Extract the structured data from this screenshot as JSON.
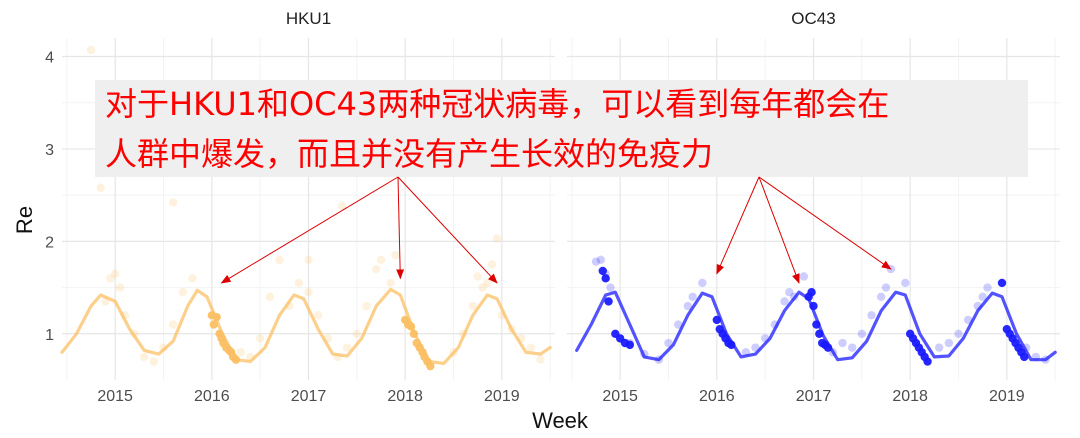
{
  "chart_data": {
    "type": "scatter",
    "xlabel": "Week",
    "ylabel": "Re",
    "ylim": [
      0.5,
      4.2
    ],
    "yticks": [
      1,
      2,
      3,
      4
    ],
    "grid": true,
    "legend": "none",
    "x_tick_labels": [
      "2015",
      "2016",
      "2017",
      "2018",
      "2019"
    ],
    "panels": [
      {
        "title": "HKU1",
        "color": "#fbbf63",
        "xlim": [
          2014.45,
          2019.55
        ],
        "curve": {
          "x": [
            2014.45,
            2014.6,
            2014.75,
            2014.85,
            2015.0,
            2015.15,
            2015.3,
            2015.45,
            2015.6,
            2015.75,
            2015.85,
            2015.95,
            2016.1,
            2016.25,
            2016.4,
            2016.55,
            2016.7,
            2016.85,
            2016.95,
            2017.1,
            2017.25,
            2017.4,
            2017.55,
            2017.7,
            2017.85,
            2017.95,
            2018.1,
            2018.25,
            2018.4,
            2018.55,
            2018.7,
            2018.85,
            2018.95,
            2019.1,
            2019.25,
            2019.4,
            2019.5
          ],
          "y": [
            0.8,
            1.0,
            1.3,
            1.42,
            1.35,
            1.05,
            0.82,
            0.78,
            0.92,
            1.3,
            1.47,
            1.4,
            1.02,
            0.72,
            0.7,
            0.85,
            1.2,
            1.42,
            1.38,
            1.05,
            0.78,
            0.76,
            0.95,
            1.3,
            1.48,
            1.42,
            1.0,
            0.7,
            0.68,
            0.85,
            1.2,
            1.42,
            1.38,
            1.05,
            0.8,
            0.78,
            0.85
          ]
        },
        "faint_points": [
          [
            2014.9,
            1.35
          ],
          [
            2014.95,
            1.6
          ],
          [
            2015.0,
            1.65
          ],
          [
            2015.05,
            1.5
          ],
          [
            2015.1,
            1.2
          ],
          [
            2015.2,
            1.0
          ],
          [
            2015.3,
            0.75
          ],
          [
            2015.4,
            0.7
          ],
          [
            2015.5,
            0.85
          ],
          [
            2015.6,
            1.1
          ],
          [
            2015.7,
            1.45
          ],
          [
            2015.8,
            1.6
          ],
          [
            2015.6,
            2.42
          ],
          [
            2015.3,
            2.95
          ],
          [
            2014.85,
            2.58
          ],
          [
            2014.75,
            4.07
          ],
          [
            2016.3,
            0.8
          ],
          [
            2016.4,
            0.75
          ],
          [
            2016.5,
            0.95
          ],
          [
            2016.6,
            1.4
          ],
          [
            2016.7,
            1.8
          ],
          [
            2016.8,
            1.3
          ],
          [
            2016.9,
            1.55
          ],
          [
            2017.0,
            1.45
          ],
          [
            2017.1,
            1.2
          ],
          [
            2017.2,
            0.95
          ],
          [
            2017.3,
            0.75
          ],
          [
            2017.4,
            0.85
          ],
          [
            2017.5,
            1.0
          ],
          [
            2017.6,
            1.3
          ],
          [
            2017.7,
            1.7
          ],
          [
            2017.75,
            1.8
          ],
          [
            2017.35,
            2.38
          ],
          [
            2017.0,
            1.8
          ],
          [
            2017.85,
            1.55
          ],
          [
            2017.9,
            1.85
          ],
          [
            2018.5,
            0.8
          ],
          [
            2018.6,
            1.0
          ],
          [
            2018.7,
            1.3
          ],
          [
            2018.8,
            1.5
          ],
          [
            2018.85,
            1.55
          ],
          [
            2018.75,
            1.62
          ],
          [
            2018.9,
            1.75
          ],
          [
            2018.95,
            2.03
          ],
          [
            2019.0,
            1.2
          ],
          [
            2019.1,
            1.05
          ],
          [
            2019.2,
            0.95
          ],
          [
            2019.3,
            0.85
          ],
          [
            2019.4,
            0.72
          ]
        ],
        "solid_points": [
          [
            2016.0,
            1.2
          ],
          [
            2016.02,
            1.1
          ],
          [
            2016.05,
            1.18
          ],
          [
            2016.08,
            1.0
          ],
          [
            2016.1,
            0.95
          ],
          [
            2016.12,
            0.9
          ],
          [
            2016.15,
            0.85
          ],
          [
            2016.18,
            0.82
          ],
          [
            2016.2,
            0.8
          ],
          [
            2016.22,
            0.75
          ],
          [
            2016.25,
            0.72
          ],
          [
            2018.0,
            1.15
          ],
          [
            2018.03,
            1.1
          ],
          [
            2018.06,
            1.08
          ],
          [
            2018.09,
            1.0
          ],
          [
            2018.12,
            0.9
          ],
          [
            2018.15,
            0.85
          ],
          [
            2018.18,
            0.8
          ],
          [
            2018.2,
            0.75
          ],
          [
            2018.23,
            0.7
          ],
          [
            2018.26,
            0.65
          ]
        ]
      },
      {
        "title": "OC43",
        "color": "#1a1aff",
        "xlim": [
          2014.45,
          2019.55
        ],
        "curve": {
          "x": [
            2014.55,
            2014.7,
            2014.85,
            2014.95,
            2015.1,
            2015.25,
            2015.4,
            2015.55,
            2015.7,
            2015.85,
            2015.95,
            2016.1,
            2016.25,
            2016.4,
            2016.55,
            2016.7,
            2016.85,
            2016.95,
            2017.1,
            2017.25,
            2017.4,
            2017.55,
            2017.7,
            2017.85,
            2017.95,
            2018.1,
            2018.25,
            2018.4,
            2018.55,
            2018.7,
            2018.85,
            2018.95,
            2019.1,
            2019.25,
            2019.4,
            2019.5
          ],
          "y": [
            0.82,
            1.1,
            1.42,
            1.45,
            1.1,
            0.75,
            0.72,
            0.88,
            1.2,
            1.44,
            1.4,
            1.0,
            0.75,
            0.78,
            0.95,
            1.25,
            1.45,
            1.38,
            0.98,
            0.72,
            0.74,
            0.92,
            1.25,
            1.45,
            1.42,
            1.0,
            0.75,
            0.76,
            0.95,
            1.25,
            1.44,
            1.4,
            1.0,
            0.72,
            0.72,
            0.8
          ]
        },
        "faint_points": [
          [
            2014.75,
            1.78
          ],
          [
            2014.8,
            1.8
          ],
          [
            2014.85,
            1.65
          ],
          [
            2014.9,
            1.5
          ],
          [
            2015.1,
            0.9
          ],
          [
            2015.25,
            0.78
          ],
          [
            2015.4,
            0.72
          ],
          [
            2015.5,
            0.9
          ],
          [
            2015.6,
            1.1
          ],
          [
            2015.7,
            1.3
          ],
          [
            2015.75,
            1.4
          ],
          [
            2015.85,
            1.55
          ],
          [
            2016.3,
            0.8
          ],
          [
            2016.4,
            0.85
          ],
          [
            2016.5,
            0.95
          ],
          [
            2016.6,
            1.1
          ],
          [
            2016.7,
            1.35
          ],
          [
            2016.75,
            1.45
          ],
          [
            2016.8,
            1.4
          ],
          [
            2016.9,
            1.62
          ],
          [
            2017.2,
            0.8
          ],
          [
            2017.3,
            0.9
          ],
          [
            2017.4,
            0.85
          ],
          [
            2017.5,
            1.0
          ],
          [
            2017.6,
            1.2
          ],
          [
            2017.7,
            1.4
          ],
          [
            2017.75,
            1.5
          ],
          [
            2017.8,
            1.7
          ],
          [
            2017.95,
            1.55
          ],
          [
            2018.3,
            0.85
          ],
          [
            2018.4,
            0.9
          ],
          [
            2018.5,
            1.0
          ],
          [
            2018.6,
            1.15
          ],
          [
            2018.7,
            1.3
          ],
          [
            2018.75,
            1.4
          ],
          [
            2018.8,
            1.5
          ],
          [
            2019.2,
            0.85
          ],
          [
            2019.3,
            0.75
          ],
          [
            2019.4,
            0.72
          ]
        ],
        "solid_points": [
          [
            2014.82,
            1.68
          ],
          [
            2014.85,
            1.6
          ],
          [
            2014.88,
            1.35
          ],
          [
            2014.95,
            1.0
          ],
          [
            2015.0,
            0.95
          ],
          [
            2015.05,
            0.9
          ],
          [
            2015.1,
            0.88
          ],
          [
            2016.0,
            1.15
          ],
          [
            2016.03,
            1.05
          ],
          [
            2016.06,
            1.0
          ],
          [
            2016.09,
            0.95
          ],
          [
            2016.12,
            0.9
          ],
          [
            2016.15,
            0.88
          ],
          [
            2016.95,
            1.4
          ],
          [
            2016.98,
            1.45
          ],
          [
            2017.0,
            1.3
          ],
          [
            2017.03,
            1.1
          ],
          [
            2017.06,
            1.0
          ],
          [
            2017.09,
            0.9
          ],
          [
            2017.12,
            0.88
          ],
          [
            2017.15,
            0.85
          ],
          [
            2018.0,
            1.0
          ],
          [
            2018.03,
            0.95
          ],
          [
            2018.06,
            0.9
          ],
          [
            2018.09,
            0.85
          ],
          [
            2018.12,
            0.8
          ],
          [
            2018.15,
            0.75
          ],
          [
            2018.18,
            0.7
          ],
          [
            2018.95,
            1.55
          ],
          [
            2019.0,
            1.05
          ],
          [
            2019.03,
            1.0
          ],
          [
            2019.06,
            0.95
          ],
          [
            2019.09,
            0.9
          ],
          [
            2019.12,
            0.85
          ],
          [
            2019.15,
            0.8
          ],
          [
            2019.18,
            0.75
          ]
        ]
      }
    ],
    "annotation": {
      "lines": [
        "对于HKU1和OC43两种冠状病毒，可以看到每年都会在",
        "人群中爆发，而且并没有产生长效的免疫力"
      ],
      "text_color": "#ff0000",
      "box_color": "#efefef",
      "arrow_color": "#dd0000",
      "arrow_targets": [
        {
          "panel": 0,
          "x": 2016.1,
          "y": 1.55
        },
        {
          "panel": 0,
          "x": 2017.95,
          "y": 1.6
        },
        {
          "panel": 0,
          "x": 2018.95,
          "y": 1.55
        },
        {
          "panel": 1,
          "x": 2016.0,
          "y": 1.65
        },
        {
          "panel": 1,
          "x": 2016.85,
          "y": 1.55
        },
        {
          "panel": 1,
          "x": 2017.8,
          "y": 1.7
        }
      ]
    }
  }
}
